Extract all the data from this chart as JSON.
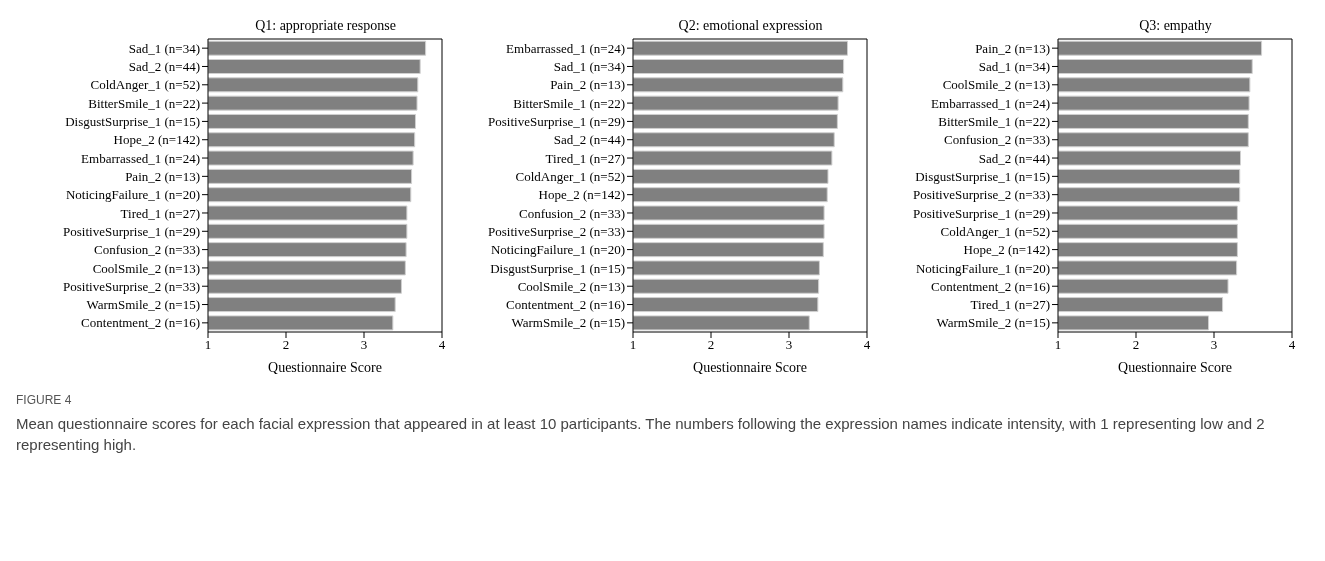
{
  "chart_data": [
    {
      "type": "bar",
      "orientation": "horizontal",
      "title": "Q1: appropriate response",
      "xlabel": "Questionnaire Score",
      "categories": [
        "Sad_1 (n=34)",
        "Sad_2 (n=44)",
        "ColdAnger_1 (n=52)",
        "BitterSmile_1 (n=22)",
        "DisgustSurprise_1 (n=15)",
        "Hope_2 (n=142)",
        "Embarrassed_1 (n=24)",
        "Pain_2 (n=13)",
        "NoticingFailure_1 (n=20)",
        "Tired_1 (n=27)",
        "PositiveSurprise_1 (n=29)",
        "Confusion_2 (n=33)",
        "CoolSmile_2 (n=13)",
        "PositiveSurprise_2 (n=33)",
        "WarmSmile_2 (n=15)",
        "Contentment_2 (n=16)"
      ],
      "values": [
        3.79,
        3.72,
        3.69,
        3.68,
        3.66,
        3.65,
        3.63,
        3.61,
        3.6,
        3.55,
        3.55,
        3.54,
        3.53,
        3.48,
        3.4,
        3.37
      ],
      "color": "#808080",
      "xlim": [
        1,
        4
      ],
      "xticks": [
        1,
        2,
        3,
        4
      ],
      "grid": false,
      "legend": false,
      "annotations": [
        "FIGURE 4",
        "Mean questionnaire scores for each facial expression that appeared in at least 10 participants. The numbers following the expression names indicate intensity, with 1 representing low and 2 representing high."
      ]
    },
    {
      "type": "bar",
      "orientation": "horizontal",
      "title": "Q2: emotional expression",
      "xlabel": "Questionnaire Score",
      "categories": [
        "Embarrassed_1 (n=24)",
        "Sad_1 (n=34)",
        "Pain_2 (n=13)",
        "BitterSmile_1 (n=22)",
        "PositiveSurprise_1 (n=29)",
        "Sad_2 (n=44)",
        "Tired_1 (n=27)",
        "ColdAnger_1 (n=52)",
        "Hope_2 (n=142)",
        "Confusion_2 (n=33)",
        "PositiveSurprise_2 (n=33)",
        "NoticingFailure_1 (n=20)",
        "DisgustSurprise_1 (n=15)",
        "CoolSmile_2 (n=13)",
        "Contentment_2 (n=16)",
        "WarmSmile_2 (n=15)"
      ],
      "values": [
        3.75,
        3.7,
        3.69,
        3.63,
        3.62,
        3.58,
        3.55,
        3.5,
        3.49,
        3.45,
        3.45,
        3.44,
        3.39,
        3.38,
        3.37,
        3.26
      ],
      "color": "#808080",
      "xlim": [
        1,
        4
      ],
      "xticks": [
        1,
        2,
        3,
        4
      ],
      "grid": false,
      "legend": false
    },
    {
      "type": "bar",
      "orientation": "horizontal",
      "title": "Q3: empathy",
      "xlabel": "Questionnaire Score",
      "categories": [
        "Pain_2 (n=13)",
        "Sad_1 (n=34)",
        "CoolSmile_2 (n=13)",
        "Embarrassed_1 (n=24)",
        "BitterSmile_1 (n=22)",
        "Confusion_2 (n=33)",
        "Sad_2 (n=44)",
        "DisgustSurprise_1 (n=15)",
        "PositiveSurprise_2 (n=33)",
        "PositiveSurprise_1 (n=29)",
        "ColdAnger_1 (n=52)",
        "Hope_2 (n=142)",
        "NoticingFailure_1 (n=20)",
        "Contentment_2 (n=16)",
        "Tired_1 (n=27)",
        "WarmSmile_2 (n=15)"
      ],
      "values": [
        3.61,
        3.49,
        3.46,
        3.45,
        3.44,
        3.44,
        3.34,
        3.33,
        3.33,
        3.3,
        3.3,
        3.3,
        3.29,
        3.18,
        3.11,
        2.93
      ],
      "color": "#808080",
      "xlim": [
        1,
        4
      ],
      "xticks": [
        1,
        2,
        3,
        4
      ],
      "grid": false,
      "legend": false
    }
  ]
}
